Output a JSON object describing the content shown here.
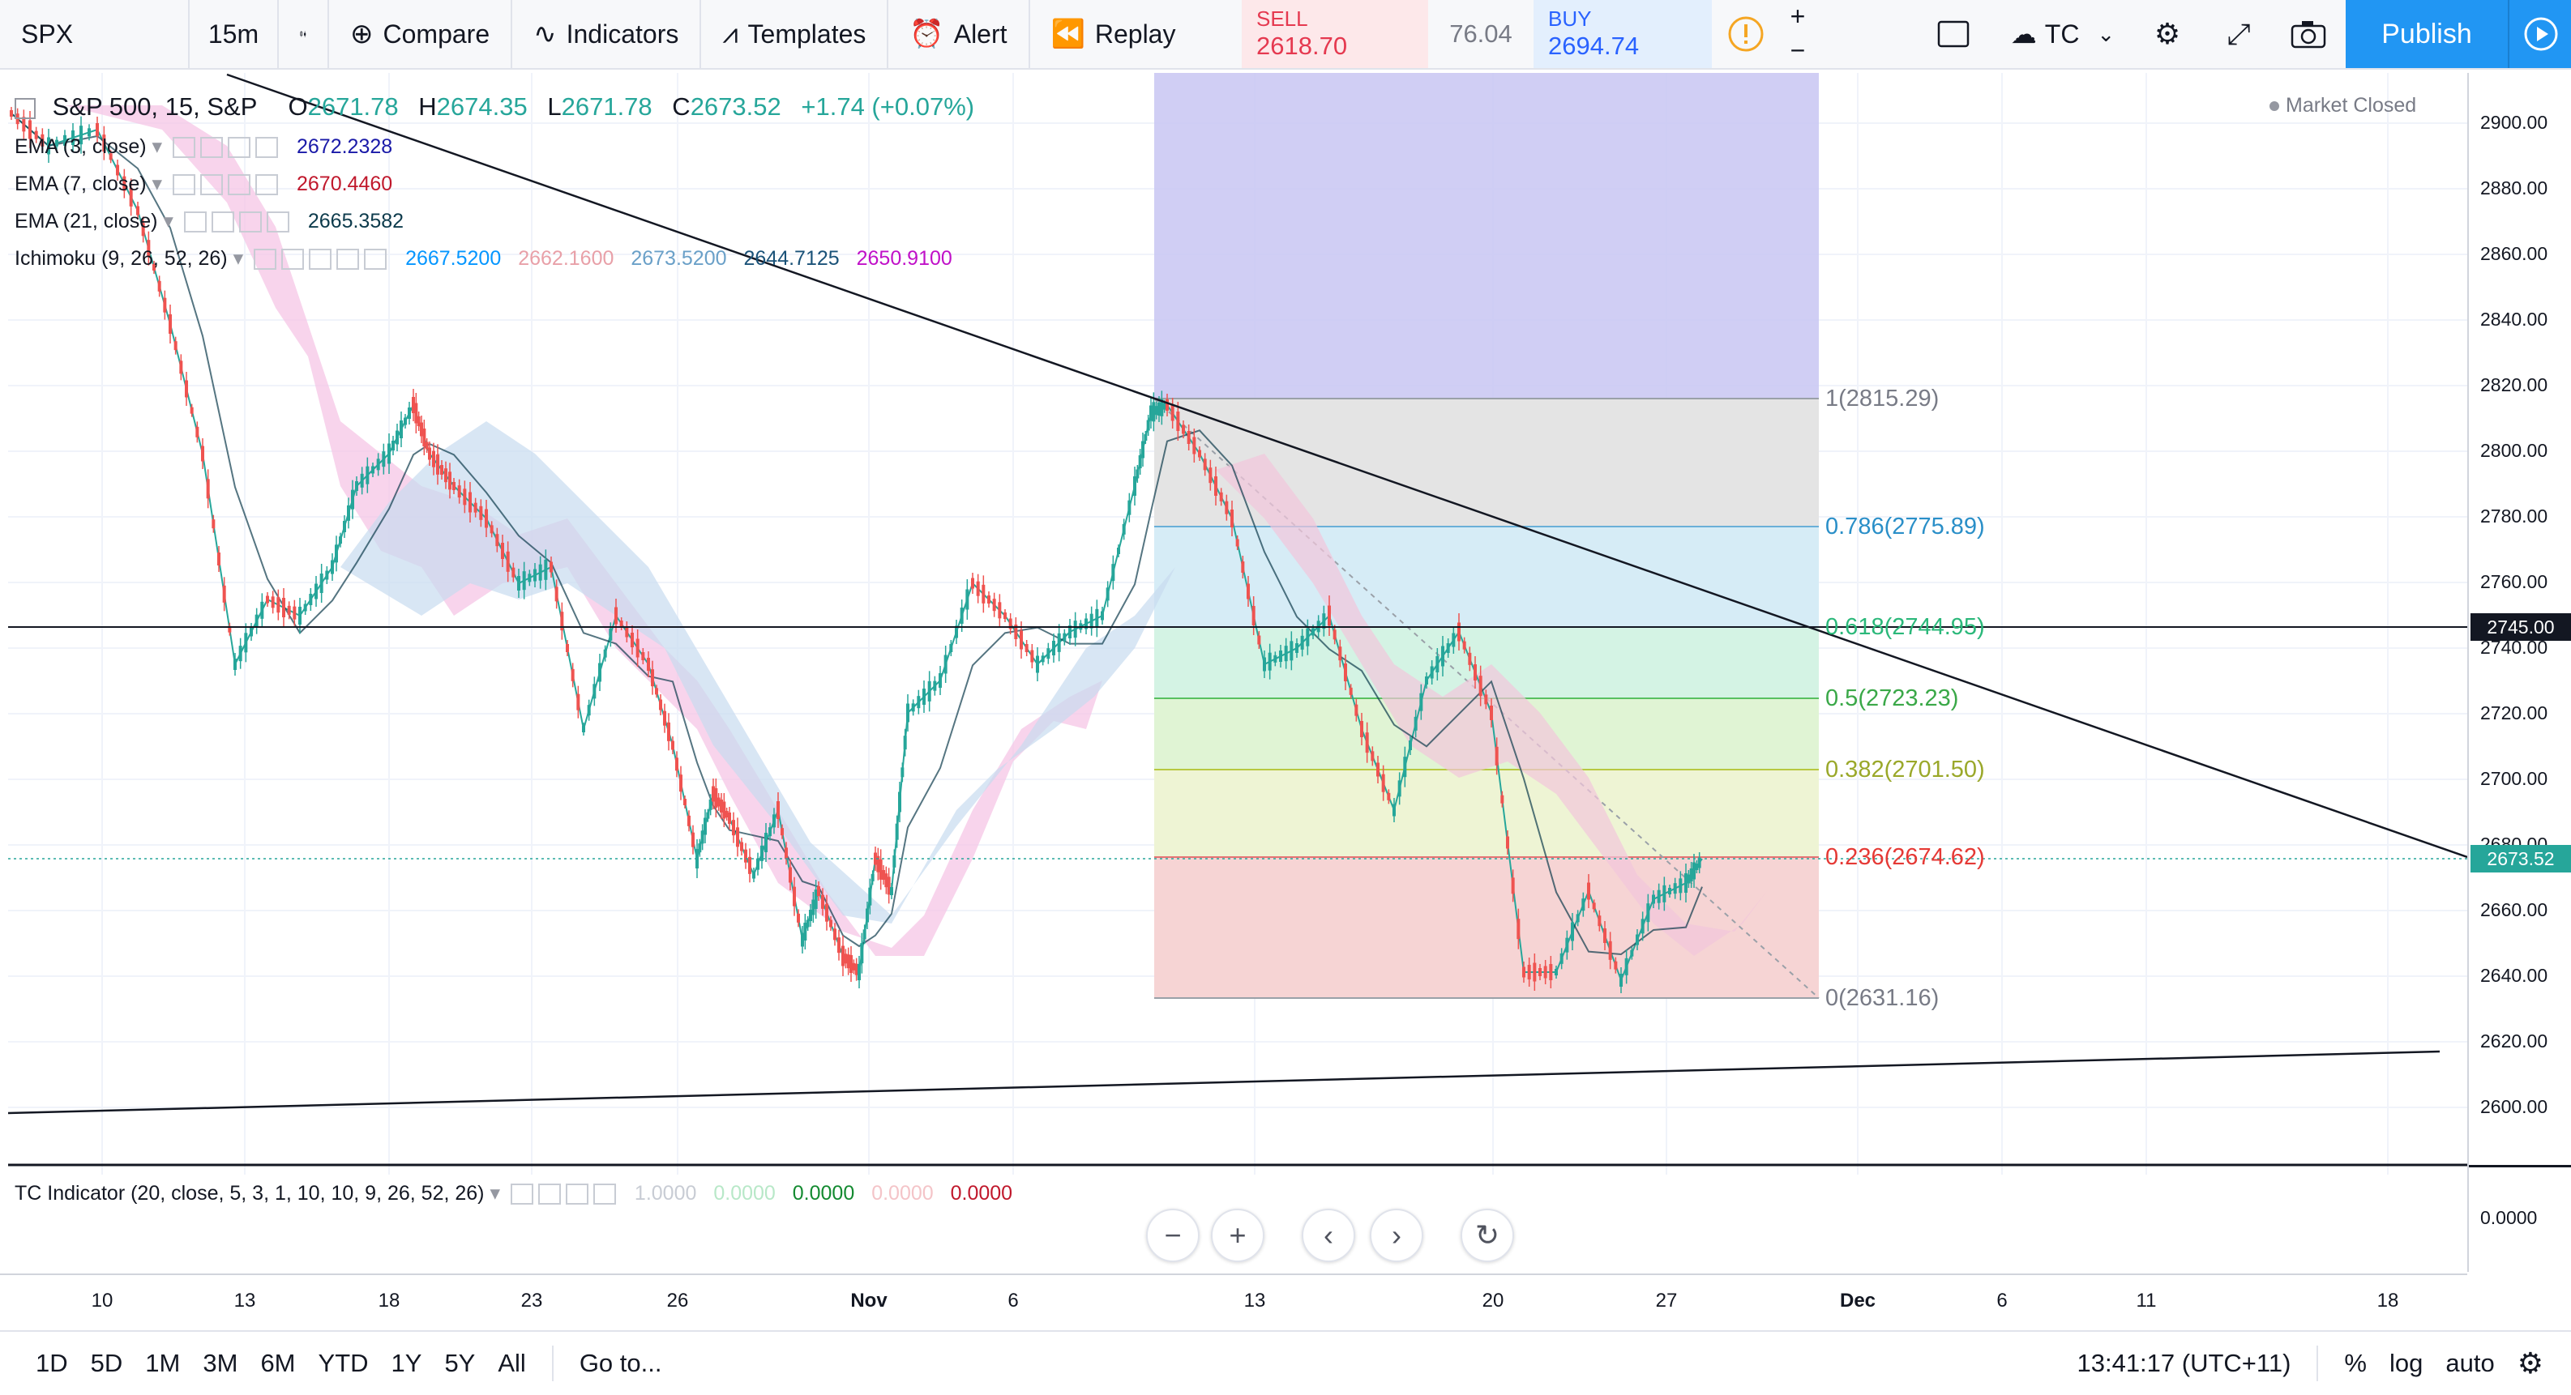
{
  "toolbar": {
    "symbol": "SPX",
    "interval": "15m",
    "compare": "Compare",
    "indicators": "Indicators",
    "templates": "Templates",
    "alert": "Alert",
    "replay": "Replay",
    "sell_label": "SELL",
    "sell_price": "2618.70",
    "spread": "76.04",
    "buy_label": "BUY",
    "buy_price": "2694.74",
    "layout_name": "TC",
    "publish": "Publish"
  },
  "header": {
    "title": "S&P 500, 15, S&P",
    "o_label": "O",
    "o": "2671.78",
    "h_label": "H",
    "h": "2674.35",
    "l_label": "L",
    "l": "2671.78",
    "c_label": "C",
    "c": "2673.52",
    "change": "+1.74 (+0.07%)",
    "market_status": "Market Closed"
  },
  "indicators": [
    {
      "name": "EMA (3, close)",
      "values": [
        "2672.2328"
      ],
      "colors": [
        "#1a1aa8"
      ]
    },
    {
      "name": "EMA (7, close)",
      "values": [
        "2670.4460"
      ],
      "colors": [
        "#c0182c"
      ]
    },
    {
      "name": "EMA (21, close)",
      "values": [
        "2665.3582"
      ],
      "colors": [
        "#0d3b4c"
      ]
    },
    {
      "name": "Ichimoku (9, 26, 52, 26)",
      "values": [
        "2667.5200",
        "2662.1600",
        "2673.5200",
        "2644.7125",
        "2650.9100"
      ],
      "colors": [
        "#0496ff",
        "#e8a0a8",
        "#6aa0c8",
        "#1a5278",
        "#c010c8"
      ]
    }
  ],
  "fib": [
    {
      "label": "1(2815.29)",
      "color": "#787b86"
    },
    {
      "label": "0.786(2775.89)",
      "color": "#2a8fc8"
    },
    {
      "label": "0.618(2744.95)",
      "color": "#2bb87a"
    },
    {
      "label": "0.5(2723.23)",
      "color": "#3aa848"
    },
    {
      "label": "0.382(2701.50)",
      "color": "#9aa82a"
    },
    {
      "label": "0.236(2674.62)",
      "color": "#e53935"
    },
    {
      "label": "0(2631.16)",
      "color": "#787b86"
    }
  ],
  "price_axis": {
    "ticks": [
      "2900.00",
      "2880.00",
      "2860.00",
      "2840.00",
      "2820.00",
      "2800.00",
      "2780.00",
      "2760.00",
      "2740.00",
      "2720.00",
      "2700.00",
      "2680.00",
      "2660.00",
      "2640.00",
      "2620.00",
      "2600.00"
    ],
    "horizontal_line_label": "2745.00",
    "last_price_label": "2673.52",
    "osc_tick": "0.0000"
  },
  "time_axis": [
    "10",
    "13",
    "18",
    "23",
    "26",
    "Nov",
    "6",
    "13",
    "20",
    "27",
    "Dec",
    "6",
    "11",
    "18"
  ],
  "tc_indicator": {
    "name": "TC Indicator (20, close, 5, 3, 1, 10, 10, 9, 26, 52, 26)",
    "values": [
      "1.0000",
      "0.0000",
      "0.0000",
      "0.0000",
      "0.0000"
    ],
    "colors": [
      "#c8ccd4",
      "#b8e8c8",
      "#138a30",
      "#f4c4c8",
      "#c0182c"
    ]
  },
  "bottom_bar": {
    "ranges": [
      "1D",
      "5D",
      "1M",
      "3M",
      "6M",
      "YTD",
      "1Y",
      "5Y",
      "All"
    ],
    "goto": "Go to...",
    "clock": "13:41:17 (UTC+11)",
    "percent": "%",
    "log": "log",
    "auto": "auto"
  },
  "colors": {
    "up": "#26a69a",
    "down": "#ef5350",
    "accent": "#2196f3",
    "last_price": "#26a69a"
  }
}
